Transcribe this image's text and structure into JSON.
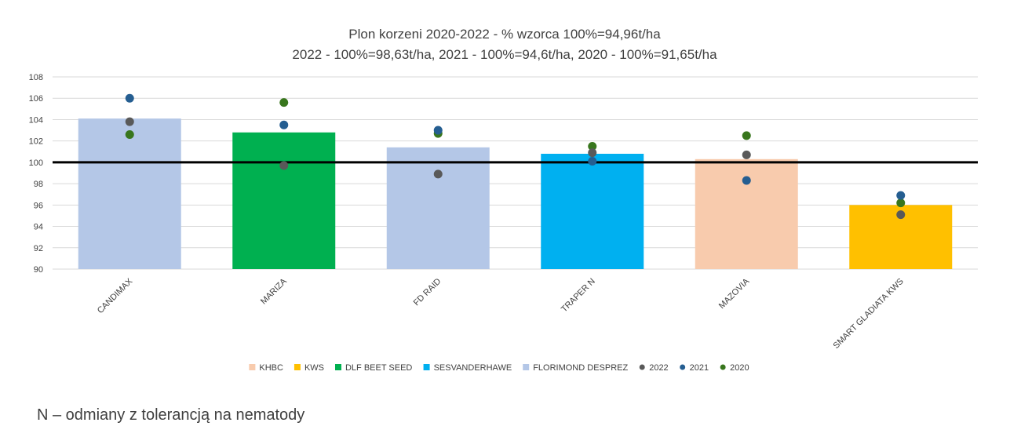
{
  "chart_data": {
    "type": "bar",
    "title": "Plon korzeni 2020-2022 - % wzorca 100%=94,96t/ha",
    "subtitle": "2022 - 100%=98,63t/ha, 2021 - 100%=94,6t/ha, 2020 - 100%=91,65t/ha",
    "ylim": [
      90,
      108
    ],
    "yticks": [
      90,
      92,
      94,
      96,
      98,
      100,
      102,
      104,
      106,
      108
    ],
    "grid": true,
    "reference_line": 100,
    "categories": [
      "CANDIMAX",
      "MARIZA",
      "FD RAID",
      "TRAPER N",
      "MAZOVIA",
      "SMART GLADIATA KWS"
    ],
    "bars": {
      "values": [
        104.1,
        102.8,
        101.4,
        100.8,
        100.3,
        96.0
      ],
      "companies": [
        "FLORIMOND DESPREZ",
        "DLF BEET SEED",
        "FLORIMOND DESPREZ",
        "SESVANDERHAWE",
        "KHBC",
        "KWS"
      ]
    },
    "series": [
      {
        "name": "2022",
        "values": [
          103.8,
          99.7,
          98.9,
          100.9,
          100.7,
          95.1
        ]
      },
      {
        "name": "2021",
        "values": [
          106.0,
          103.5,
          103.0,
          100.1,
          98.3,
          96.9
        ]
      },
      {
        "name": "2020",
        "values": [
          102.6,
          105.6,
          102.7,
          101.5,
          102.5,
          96.2
        ]
      }
    ],
    "legend": {
      "placement": "bottom",
      "entries": [
        {
          "label": "KHBC",
          "kind": "bar"
        },
        {
          "label": "KWS",
          "kind": "bar"
        },
        {
          "label": "DLF BEET SEED",
          "kind": "bar"
        },
        {
          "label": "SESVANDERHAWE",
          "kind": "bar"
        },
        {
          "label": "FLORIMOND DESPREZ",
          "kind": "bar"
        },
        {
          "label": "2022",
          "kind": "dot"
        },
        {
          "label": "2021",
          "kind": "dot"
        },
        {
          "label": "2020",
          "kind": "dot"
        }
      ]
    },
    "colors": {
      "KHBC": "#f8cbad",
      "KWS": "#ffc000",
      "DLF BEET SEED": "#00b050",
      "SESVANDERHAWE": "#00b0f0",
      "FLORIMOND DESPREZ": "#b4c7e7",
      "2022": "#595959",
      "2021": "#255e91",
      "2020": "#38761d"
    }
  },
  "footnote": "N – odmiany z tolerancją na nematody"
}
